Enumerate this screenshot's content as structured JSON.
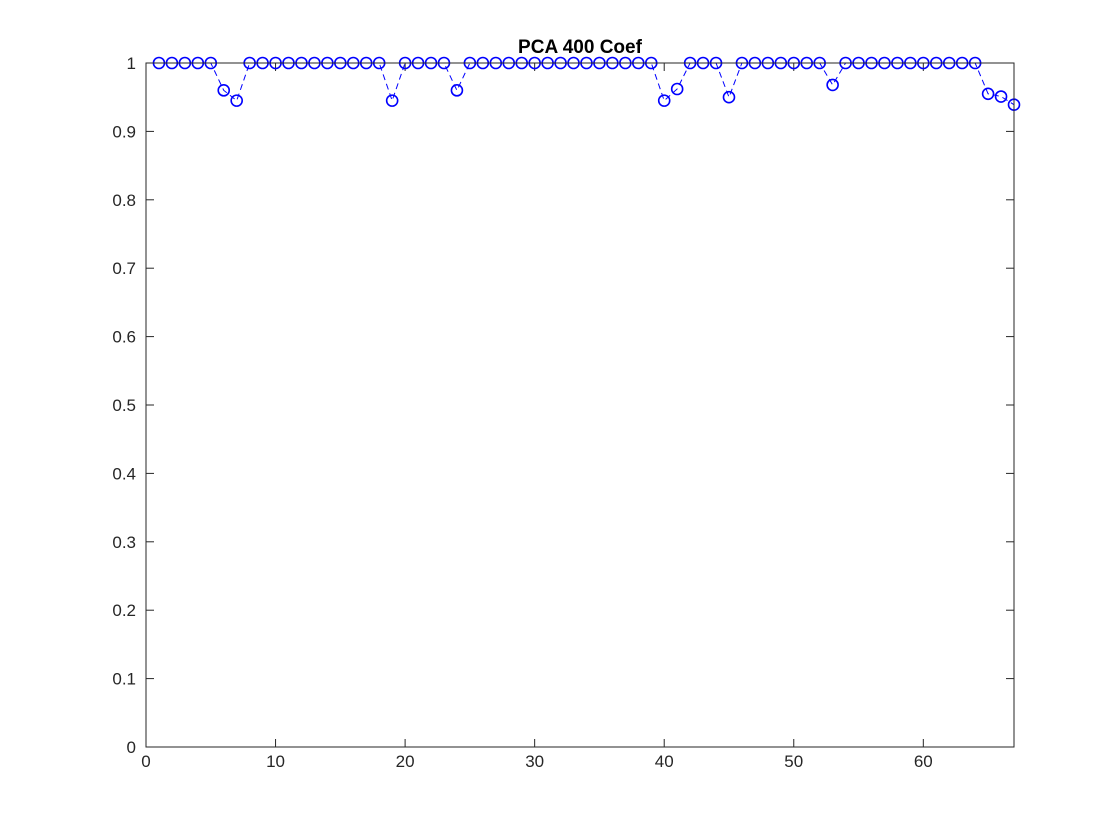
{
  "chart_data": {
    "type": "line",
    "title": "PCA 400 Coef",
    "xlabel": "",
    "ylabel": "",
    "xlim": [
      0,
      67
    ],
    "ylim": [
      0,
      1
    ],
    "xticks": [
      0,
      10,
      20,
      30,
      40,
      50,
      60
    ],
    "yticks": [
      0,
      0.1,
      0.2,
      0.3,
      0.4,
      0.5,
      0.6,
      0.7,
      0.8,
      0.9,
      1
    ],
    "xtick_labels": [
      "0",
      "10",
      "20",
      "30",
      "40",
      "50",
      "60"
    ],
    "ytick_labels": [
      "0",
      "0.1",
      "0.2",
      "0.3",
      "0.4",
      "0.5",
      "0.6",
      "0.7",
      "0.8",
      "0.9",
      "1"
    ],
    "grid": false,
    "marker": "circle",
    "line_style": "dashed",
    "color": "#0000ff",
    "series": [
      {
        "x": [
          1,
          2,
          3,
          4,
          5,
          6,
          7,
          8,
          9,
          10,
          11,
          12,
          13,
          14,
          15,
          16,
          17,
          18,
          19,
          20,
          21,
          22,
          23,
          24,
          25,
          26,
          27,
          28,
          29,
          30,
          31,
          32,
          33,
          34,
          35,
          36,
          37,
          38,
          39,
          40,
          41,
          42,
          43,
          44,
          45,
          46,
          47,
          48,
          49,
          50,
          51,
          52,
          53,
          54,
          55,
          56,
          57,
          58,
          59,
          60,
          61,
          62,
          63,
          64,
          65,
          66,
          67
        ],
        "values": [
          1,
          1,
          1,
          1,
          1,
          0.96,
          0.945,
          1,
          1,
          1,
          1,
          1,
          1,
          1,
          1,
          1,
          1,
          1,
          0.945,
          1,
          1,
          1,
          1,
          0.96,
          1,
          1,
          1,
          1,
          1,
          1,
          1,
          1,
          1,
          1,
          1,
          1,
          1,
          1,
          1,
          0.945,
          0.962,
          1,
          1,
          1,
          0.95,
          1,
          1,
          1,
          1,
          1,
          1,
          1,
          0.968,
          1,
          1,
          1,
          1,
          1,
          1,
          1,
          1,
          1,
          1,
          1,
          0.955,
          0.951,
          0.939
        ]
      }
    ]
  }
}
